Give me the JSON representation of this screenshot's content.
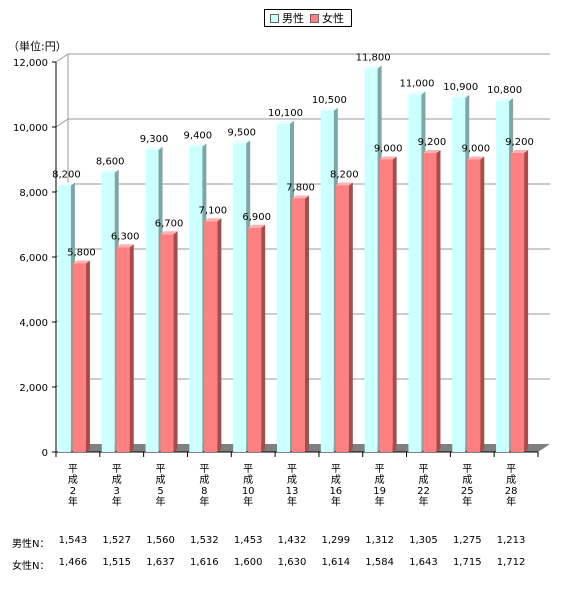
{
  "legend": {
    "male": "男性",
    "female": "女性"
  },
  "unit_label": "（単位:円）",
  "colors": {
    "male": "#ccffff",
    "female": "#ff8080"
  },
  "chart_data": {
    "type": "bar",
    "categories": [
      "平成2年",
      "平成3年",
      "平成5年",
      "平成8年",
      "平成10年",
      "平成13年",
      "平成16年",
      "平成19年",
      "平成22年",
      "平成25年",
      "平成28年"
    ],
    "category_glyphs": [
      [
        "平",
        "成",
        "2",
        "年"
      ],
      [
        "平",
        "成",
        "3",
        "年"
      ],
      [
        "平",
        "成",
        "5",
        "年"
      ],
      [
        "平",
        "成",
        "8",
        "年"
      ],
      [
        "平",
        "成",
        "10",
        "年"
      ],
      [
        "平",
        "成",
        "13",
        "年"
      ],
      [
        "平",
        "成",
        "16",
        "年"
      ],
      [
        "平",
        "成",
        "19",
        "年"
      ],
      [
        "平",
        "成",
        "22",
        "年"
      ],
      [
        "平",
        "成",
        "25",
        "年"
      ],
      [
        "平",
        "成",
        "28",
        "年"
      ]
    ],
    "series": [
      {
        "name": "男性",
        "values": [
          8200,
          8600,
          9300,
          9400,
          9500,
          10100,
          10500,
          11800,
          11000,
          10900,
          10800
        ]
      },
      {
        "name": "女性",
        "values": [
          5800,
          6300,
          6700,
          7100,
          6900,
          7800,
          8200,
          9000,
          9200,
          9000,
          9200
        ]
      }
    ],
    "data_labels": {
      "male": [
        "8,200",
        "8,600",
        "9,300",
        "9,400",
        "9,500",
        "10,100",
        "10,500",
        "11,800",
        "11,000",
        "10,900",
        "10,800"
      ],
      "female": [
        "5,800",
        "6,300",
        "6,700",
        "7,100",
        "6,900",
        "7,800",
        "8,200",
        "9,000",
        "9,200",
        "9,000",
        "9,200"
      ]
    },
    "yticks": [
      0,
      2000,
      4000,
      6000,
      8000,
      10000,
      12000
    ],
    "ytick_labels": [
      "0",
      "2,000",
      "4,000",
      "6,000",
      "8,000",
      "10,000",
      "12,000"
    ],
    "ylim": [
      0,
      12000
    ],
    "grid": true,
    "legend_position": "top-center"
  },
  "sample_sizes": {
    "male_label": "男性N：",
    "female_label": "女性N：",
    "male": [
      "1,543",
      "1,527",
      "1,560",
      "1,532",
      "1,453",
      "1,432",
      "1,299",
      "1,312",
      "1,305",
      "1,275",
      "1,213"
    ],
    "female": [
      "1,466",
      "1,515",
      "1,637",
      "1,616",
      "1,600",
      "1,630",
      "1,614",
      "1,584",
      "1,643",
      "1,715",
      "1,712"
    ]
  }
}
